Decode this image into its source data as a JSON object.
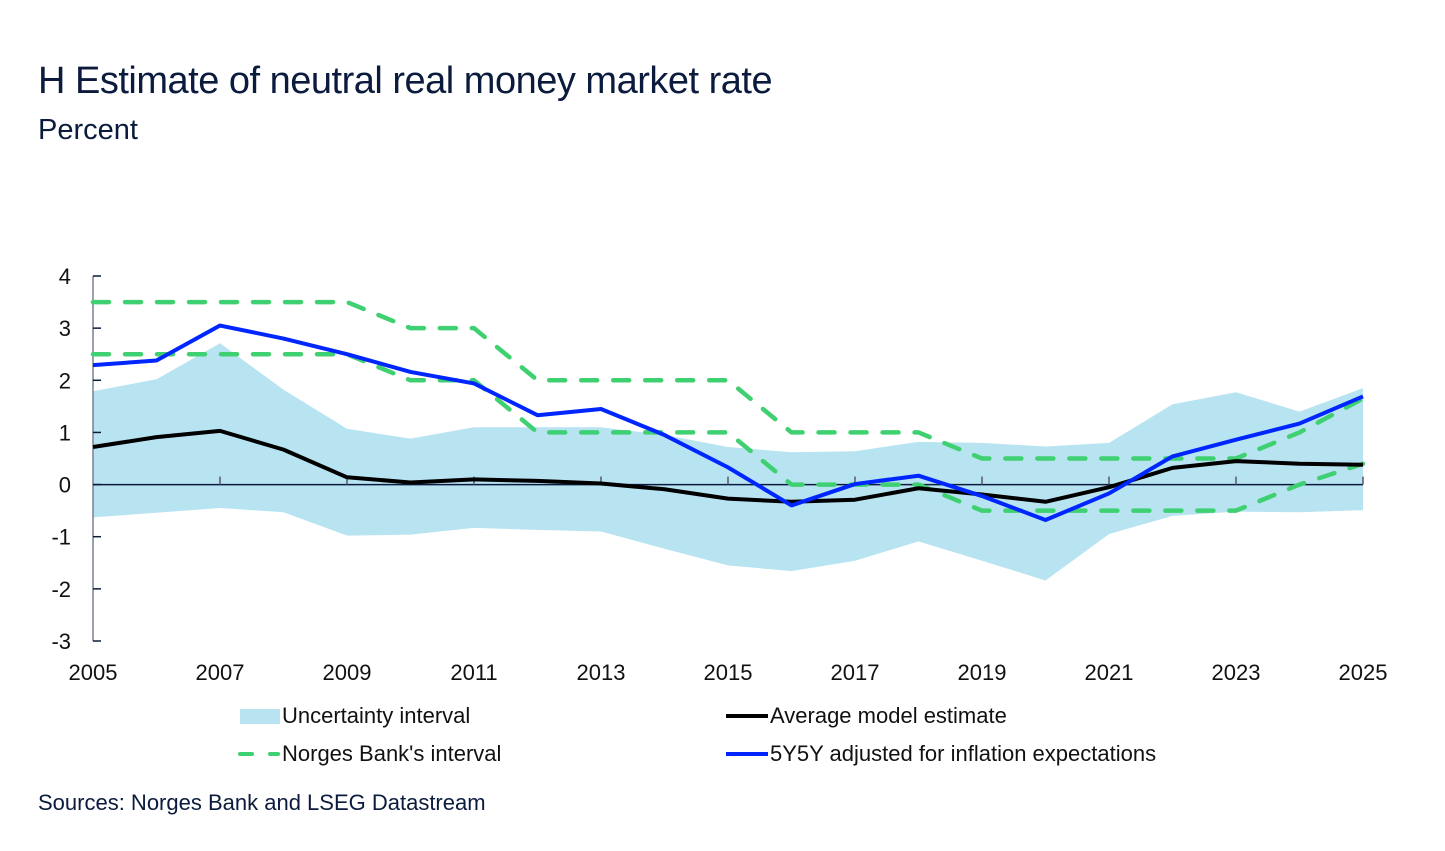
{
  "header": {
    "title": "H Estimate of neutral real money market rate",
    "subtitle": "Percent"
  },
  "footer": {
    "source": "Sources: Norges Bank and LSEG Datastream"
  },
  "colors": {
    "band": "#b8e4f2",
    "average": "#000000",
    "norges": "#3fd071",
    "fiveyfivey": "#0026ff",
    "axis": "#0b1b3d"
  },
  "chart_data": {
    "type": "line",
    "title": "H Estimate of neutral real money market rate",
    "subtitle": "Percent",
    "xlabel": "",
    "ylabel": "Percent",
    "x": [
      2005,
      2006,
      2007,
      2008,
      2009,
      2010,
      2011,
      2012,
      2013,
      2014,
      2015,
      2016,
      2017,
      2018,
      2019,
      2020,
      2021,
      2022,
      2023,
      2024,
      2025
    ],
    "xlim": [
      2005,
      2025
    ],
    "ylim": [
      -3,
      4
    ],
    "x_ticks": [
      2005,
      2007,
      2009,
      2011,
      2013,
      2015,
      2017,
      2019,
      2021,
      2023,
      2025
    ],
    "y_ticks": [
      4,
      3,
      2,
      1,
      0,
      -1,
      -2,
      -3
    ],
    "grid": false,
    "legend_position": "bottom",
    "series": [
      {
        "name": "Uncertainty interval",
        "type": "area-band",
        "upper": [
          1.79,
          2.02,
          2.71,
          1.82,
          1.07,
          0.88,
          1.1,
          1.1,
          1.1,
          0.95,
          0.72,
          0.62,
          0.64,
          0.82,
          0.8,
          0.73,
          0.8,
          1.54,
          1.77,
          1.4,
          1.85
        ],
        "lower": [
          -0.63,
          -0.54,
          -0.45,
          -0.53,
          -0.98,
          -0.96,
          -0.83,
          -0.87,
          -0.9,
          -1.23,
          -1.55,
          -1.66,
          -1.46,
          -1.09,
          -1.46,
          -1.84,
          -0.95,
          -0.6,
          -0.52,
          -0.53,
          -0.49
        ]
      },
      {
        "name": "Average model estimate",
        "type": "line",
        "values": [
          0.72,
          0.91,
          1.03,
          0.67,
          0.14,
          0.04,
          0.1,
          0.07,
          0.02,
          -0.09,
          -0.27,
          -0.33,
          -0.29,
          -0.07,
          -0.19,
          -0.33,
          -0.05,
          0.32,
          0.45,
          0.4,
          0.38
        ]
      },
      {
        "name": "Norges Bank's interval",
        "type": "dashed-band",
        "upper": [
          3.5,
          3.5,
          3.5,
          3.5,
          3.5,
          3.0,
          3.0,
          2.0,
          2.0,
          2.0,
          2.0,
          1.0,
          1.0,
          1.0,
          0.5,
          0.5,
          0.5,
          0.5,
          0.5,
          1.0,
          1.65
        ],
        "lower": [
          2.5,
          2.5,
          2.5,
          2.5,
          2.5,
          2.0,
          2.0,
          1.0,
          1.0,
          1.0,
          1.0,
          0.0,
          0.0,
          0.0,
          -0.5,
          -0.5,
          -0.5,
          -0.5,
          -0.5,
          0.0,
          0.4
        ]
      },
      {
        "name": "5Y5Y adjusted for inflation expectations",
        "type": "line",
        "values": [
          2.29,
          2.38,
          3.05,
          2.8,
          2.5,
          2.16,
          1.94,
          1.33,
          1.45,
          0.95,
          0.33,
          -0.4,
          0.01,
          0.17,
          -0.22,
          -0.68,
          -0.17,
          0.54,
          0.86,
          1.17,
          1.69
        ]
      }
    ]
  },
  "legend": {
    "items": [
      {
        "label": "Uncertainty interval",
        "kind": "band"
      },
      {
        "label": "Average model estimate",
        "kind": "line"
      },
      {
        "label": "Norges Bank's interval",
        "kind": "dash"
      },
      {
        "label": "5Y5Y adjusted for inflation expectations",
        "kind": "line"
      }
    ]
  }
}
